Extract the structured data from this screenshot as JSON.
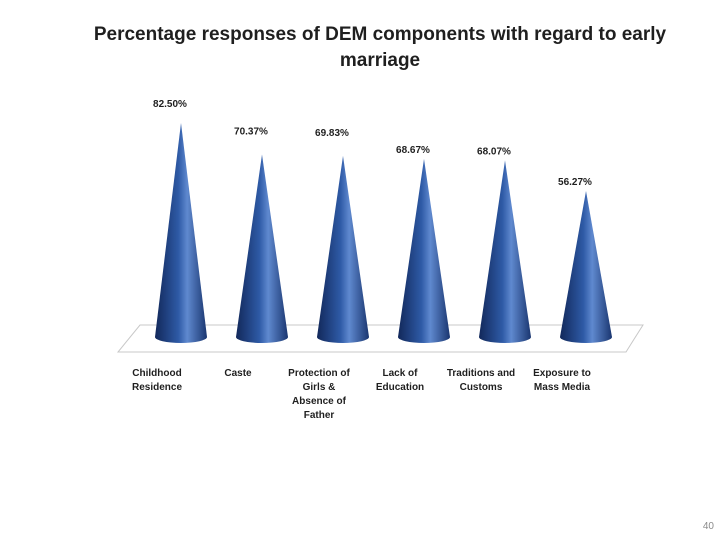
{
  "slide": {
    "title": "Percentage responses of DEM  components with regard to early marriage",
    "page_number": "40"
  },
  "chart_data": {
    "type": "bar",
    "shape": "cone",
    "title": "Percentage responses of DEM  components with regard to early marriage",
    "categories": [
      [
        "Childhood",
        "Residence"
      ],
      [
        "Caste"
      ],
      [
        "Protection of",
        "Girls &",
        "Absence of",
        "Father"
      ],
      [
        "Lack of",
        "Education"
      ],
      [
        "Traditions and",
        "Customs"
      ],
      [
        "Exposure to",
        "Mass Media"
      ]
    ],
    "values": [
      82.5,
      70.37,
      69.83,
      68.67,
      68.07,
      56.27
    ],
    "data_labels": [
      "82.50%",
      "70.37%",
      "69.83%",
      "68.67%",
      "68.07%",
      "56.27%"
    ],
    "ylim": [
      0,
      90
    ],
    "grid": false,
    "legend": "none",
    "colors": {
      "cone_dark": "#12285a",
      "cone_mid": "#2e5aa6",
      "cone_light": "#7aa0dc",
      "floor_stroke": "#c8c8c8"
    }
  }
}
